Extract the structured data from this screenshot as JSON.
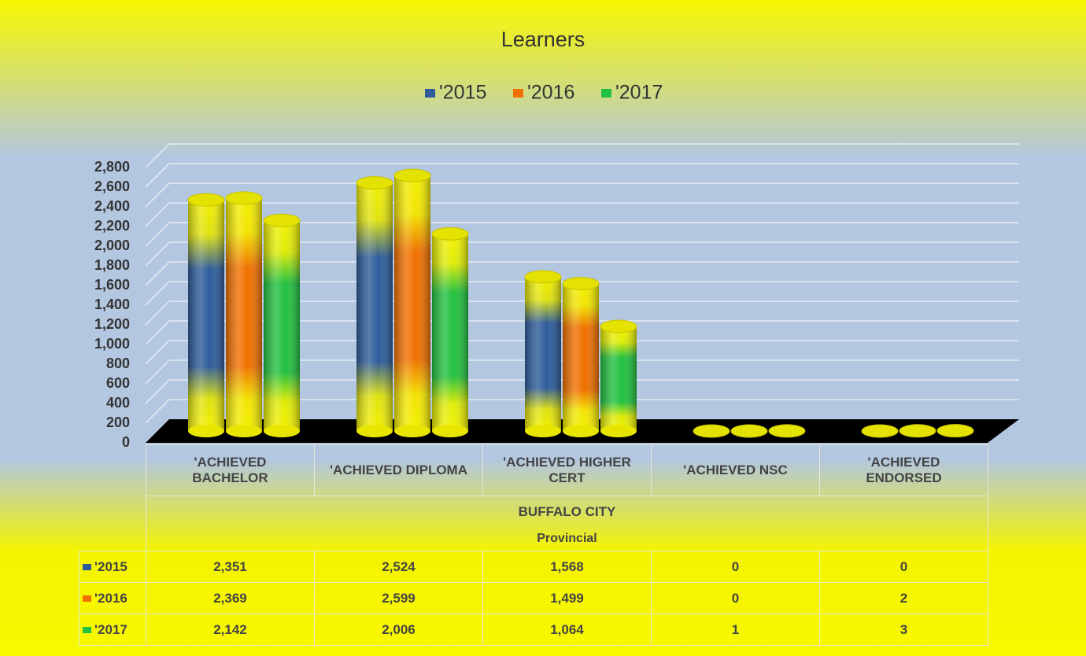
{
  "chart_data": {
    "type": "bar3d",
    "title": "Learners",
    "categories": [
      "'ACHIEVED BACHELOR",
      "'ACHIEVED DIPLOMA",
      "'ACHIEVED HIGHER CERT",
      "'ACHIEVED NSC",
      "'ACHIEVED ENDORSED"
    ],
    "category_groups": [
      "BUFFALO CITY",
      "Provincial"
    ],
    "series": [
      {
        "name": "'2015",
        "color": "#2e5c9a",
        "values": [
          2351,
          2524,
          1568,
          0,
          0
        ],
        "value_labels": [
          "2,351",
          "2,524",
          "1,568",
          "0",
          "0"
        ]
      },
      {
        "name": "'2016",
        "color": "#f07000",
        "values": [
          2369,
          2599,
          1499,
          0,
          2
        ],
        "value_labels": [
          "2,369",
          "2,599",
          "1,499",
          "0",
          "2"
        ]
      },
      {
        "name": "'2017",
        "color": "#22c040",
        "values": [
          2142,
          2006,
          1064,
          1,
          3
        ],
        "value_labels": [
          "2,142",
          "2,006",
          "1,064",
          "1",
          "3"
        ]
      }
    ],
    "ylim": [
      0,
      2800
    ],
    "yticks": [
      0,
      200,
      400,
      600,
      800,
      {
        "value": 1000,
        "label": "1,000"
      },
      {
        "value": 1200,
        "label": "1,200"
      },
      {
        "value": 1400,
        "label": "1,400"
      },
      {
        "value": 1600,
        "label": "1,600"
      },
      {
        "value": 1800,
        "label": "1,800"
      },
      {
        "value": 2000,
        "label": "2,000"
      },
      {
        "value": 2200,
        "label": "2,200"
      },
      {
        "value": 2400,
        "label": "2,400"
      },
      {
        "value": 2600,
        "label": "2,600"
      },
      {
        "value": 2800,
        "label": "2,800"
      }
    ],
    "grid": true,
    "legend": "top",
    "data_table": true
  }
}
